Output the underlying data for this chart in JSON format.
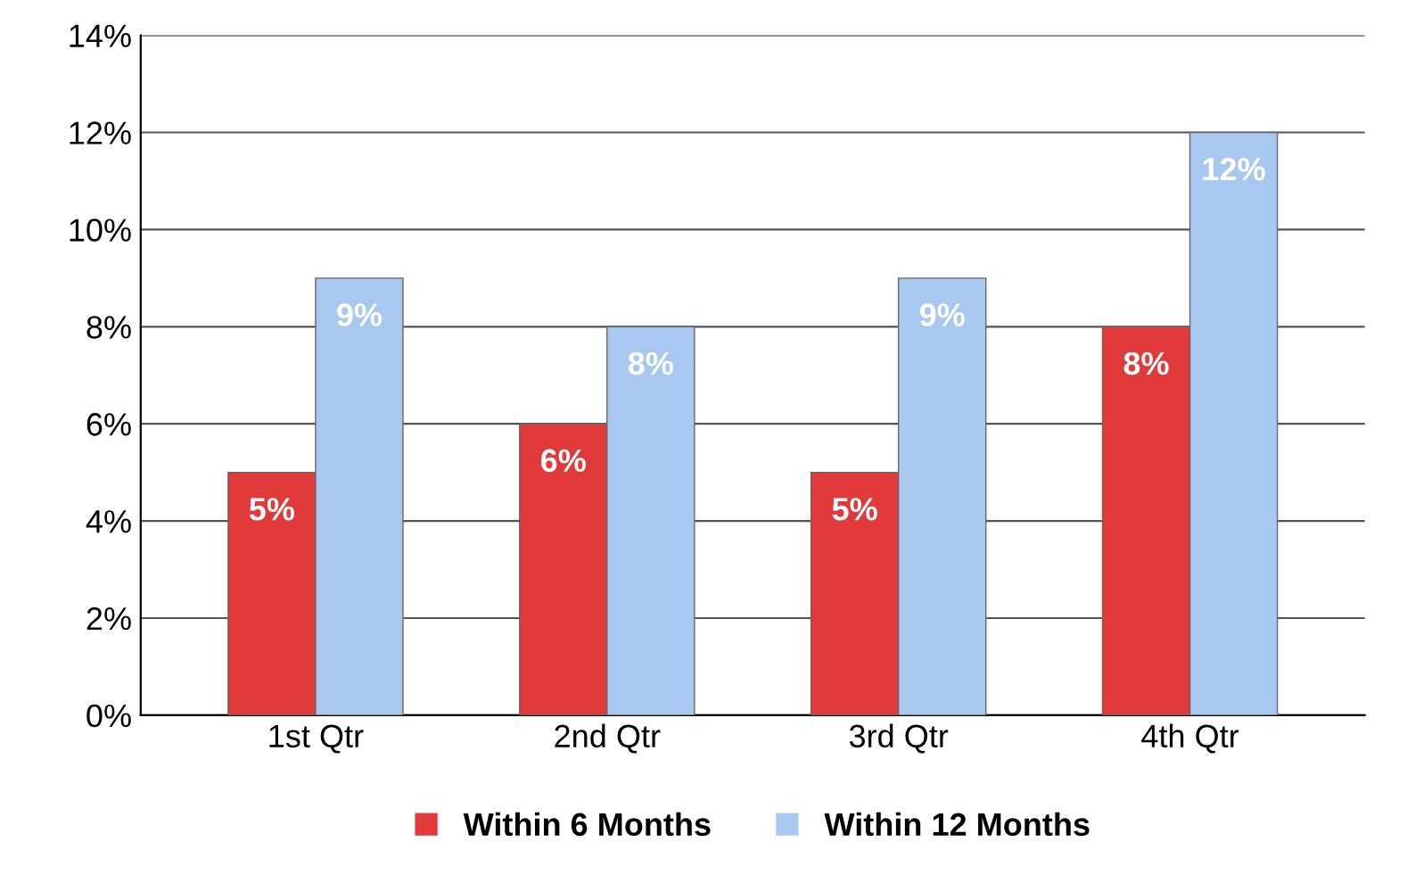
{
  "chart_data": {
    "type": "bar",
    "categories": [
      "1st Qtr",
      "2nd Qtr",
      "3rd Qtr",
      "4th Qtr"
    ],
    "series": [
      {
        "name": "Within 6 Months",
        "color": "#e2393b",
        "values": [
          5,
          6,
          5,
          8
        ],
        "value_labels": [
          "5%",
          "6%",
          "5%",
          "8%"
        ]
      },
      {
        "name": "Within 12 Months",
        "color": "#a8c8f0",
        "values": [
          9,
          8,
          9,
          12
        ],
        "value_labels": [
          "9%",
          "8%",
          "9%",
          "12%"
        ]
      }
    ],
    "ylim": [
      0,
      14
    ],
    "yticks": [
      {
        "value": 0,
        "label": "0%"
      },
      {
        "value": 2,
        "label": "2%"
      },
      {
        "value": 4,
        "label": "4%"
      },
      {
        "value": 6,
        "label": "6%"
      },
      {
        "value": 8,
        "label": "8%"
      },
      {
        "value": 10,
        "label": "10%"
      },
      {
        "value": 12,
        "label": "12%"
      },
      {
        "value": 14,
        "label": "14%"
      }
    ],
    "grid": "y",
    "legend": "bottom"
  }
}
